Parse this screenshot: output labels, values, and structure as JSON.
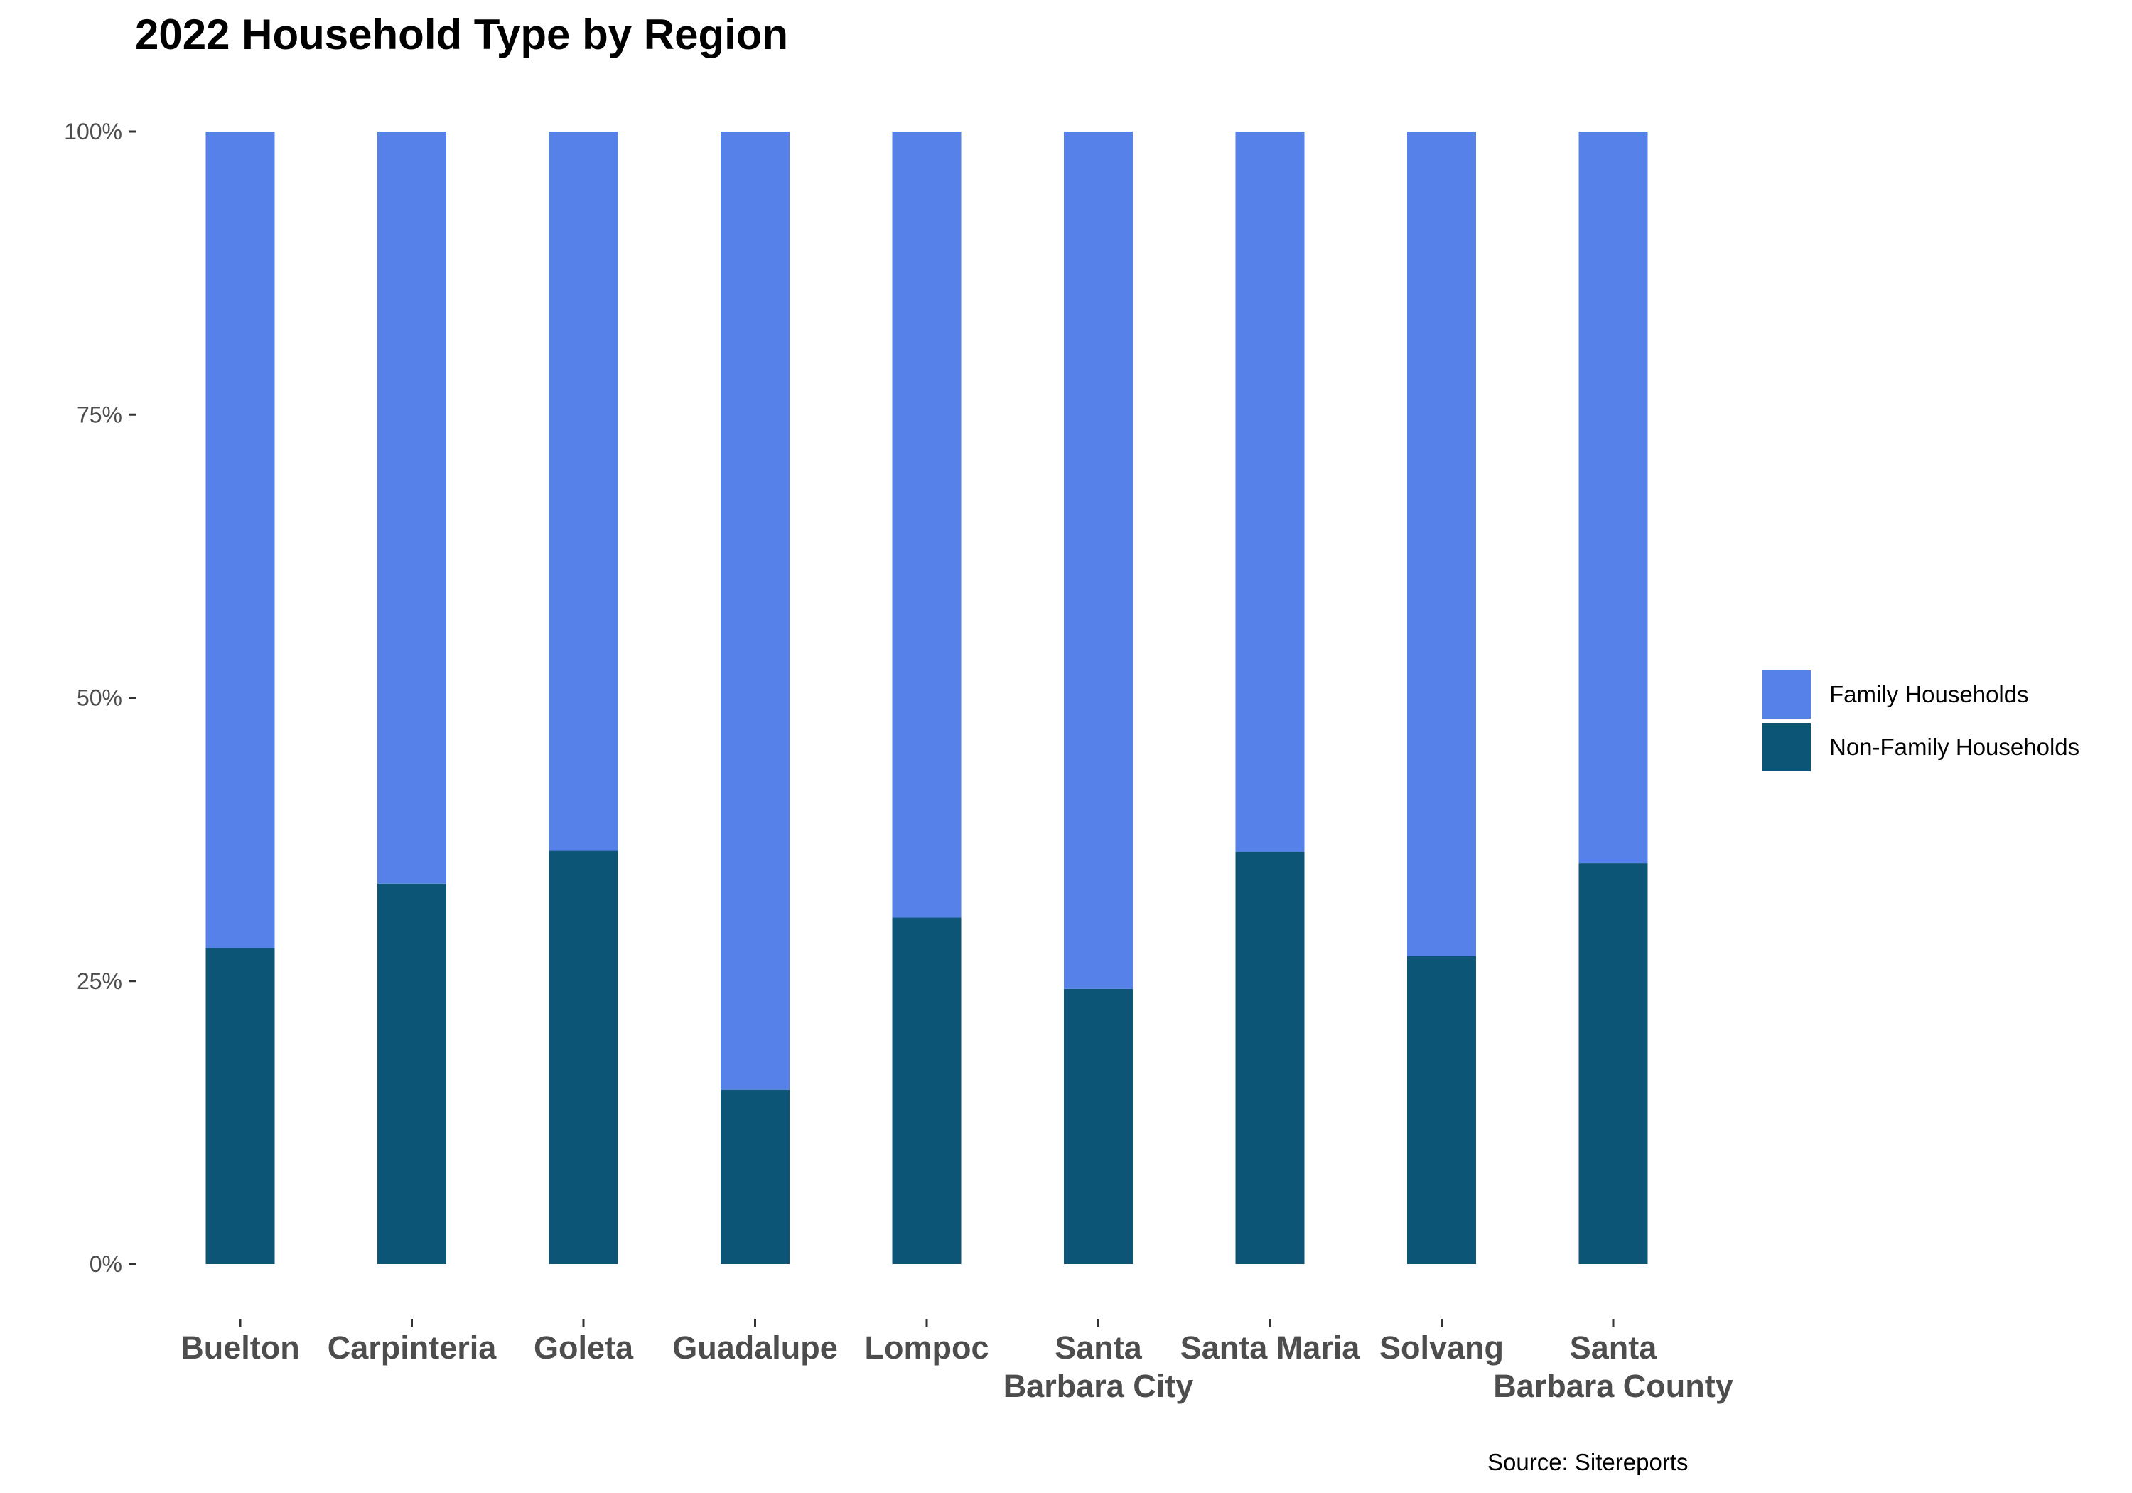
{
  "chart_data": {
    "type": "bar",
    "stacked": true,
    "title": "2022 Household Type by Region",
    "xlabel": "",
    "ylabel": "",
    "ylim": [
      0,
      100
    ],
    "yticks": [
      "0%",
      "25%",
      "50%",
      "75%",
      "100%"
    ],
    "grid": false,
    "legend_position": "right",
    "categories": [
      "Buelton",
      "Carpinteria",
      "Goleta",
      "Guadalupe",
      "Lompoc",
      "Santa Barbara City",
      "Santa Maria",
      "Solvang",
      "Santa Barbara County"
    ],
    "category_label_lines": [
      [
        "Buelton"
      ],
      [
        "Carpinteria"
      ],
      [
        "Goleta"
      ],
      [
        "Guadalupe"
      ],
      [
        "Lompoc"
      ],
      [
        "Santa",
        "Barbara City"
      ],
      [
        "Santa Maria"
      ],
      [
        "Solvang"
      ],
      [
        "Santa",
        "Barbara County"
      ]
    ],
    "series": [
      {
        "name": "Non-Family Households",
        "color": "#0d5577",
        "values": [
          27.9,
          33.6,
          36.5,
          15.4,
          30.6,
          24.3,
          36.4,
          27.2,
          35.4
        ]
      },
      {
        "name": "Family Households",
        "color": "#5581e9",
        "values": [
          72.1,
          66.4,
          63.5,
          84.6,
          69.4,
          75.7,
          63.6,
          72.8,
          64.6
        ]
      }
    ],
    "source": "Source: Sitereports"
  },
  "legend": {
    "items": [
      {
        "label": "Family Households",
        "color": "#5581e9"
      },
      {
        "label": "Non-Family Households",
        "color": "#0d5577"
      }
    ]
  }
}
